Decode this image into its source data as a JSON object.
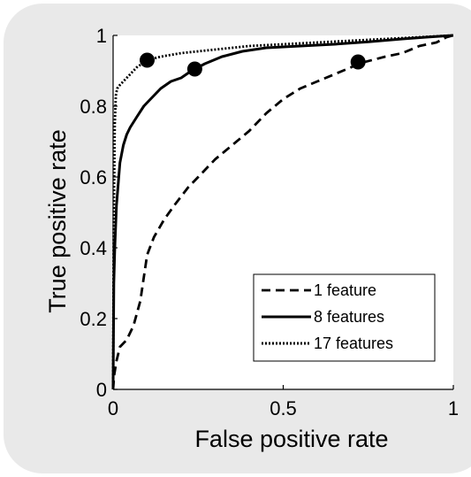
{
  "chart_data": {
    "type": "line",
    "title": "",
    "xlabel": "False positive rate",
    "ylabel": "True positive rate",
    "xlim": [
      0,
      1
    ],
    "ylim": [
      0,
      1
    ],
    "xticks": [
      {
        "value": 0,
        "label": "0"
      },
      {
        "value": 0.5,
        "label": "0.5"
      },
      {
        "value": 1,
        "label": "1"
      }
    ],
    "yticks": [
      {
        "value": 0,
        "label": "0"
      },
      {
        "value": 0.2,
        "label": "0.2"
      },
      {
        "value": 0.4,
        "label": "0.4"
      },
      {
        "value": 0.6,
        "label": "0.6"
      },
      {
        "value": 0.8,
        "label": "0.8"
      },
      {
        "value": 1,
        "label": "1"
      }
    ],
    "grid": false,
    "legend_position": "bottom-right",
    "series": [
      {
        "name": "1 feature",
        "style": "dashed",
        "x": [
          0,
          0.003,
          0.01,
          0.02,
          0.04,
          0.06,
          0.08,
          0.1,
          0.12,
          0.15,
          0.18,
          0.22,
          0.25,
          0.3,
          0.35,
          0.4,
          0.45,
          0.5,
          0.55,
          0.6,
          0.65,
          0.7,
          0.72,
          0.8,
          0.85,
          0.9,
          0.95,
          0.98,
          1.0
        ],
        "y": [
          0,
          0.04,
          0.08,
          0.12,
          0.14,
          0.18,
          0.25,
          0.38,
          0.43,
          0.48,
          0.52,
          0.57,
          0.6,
          0.65,
          0.69,
          0.73,
          0.78,
          0.82,
          0.85,
          0.87,
          0.89,
          0.91,
          0.92,
          0.94,
          0.95,
          0.97,
          0.98,
          0.995,
          1.0
        ]
      },
      {
        "name": "8 features",
        "style": "solid",
        "x": [
          0,
          0.002,
          0.005,
          0.01,
          0.02,
          0.03,
          0.04,
          0.05,
          0.07,
          0.09,
          0.11,
          0.14,
          0.17,
          0.2,
          0.23,
          0.27,
          0.32,
          0.38,
          0.45,
          0.55,
          0.65,
          0.75,
          0.85,
          0.92,
          1.0
        ],
        "y": [
          0,
          0.3,
          0.4,
          0.52,
          0.64,
          0.69,
          0.72,
          0.74,
          0.77,
          0.8,
          0.82,
          0.85,
          0.87,
          0.88,
          0.9,
          0.92,
          0.94,
          0.955,
          0.965,
          0.97,
          0.975,
          0.982,
          0.99,
          0.995,
          1.0
        ]
      },
      {
        "name": "17 features",
        "style": "dotted",
        "x": [
          0,
          0.002,
          0.005,
          0.008,
          0.012,
          0.02,
          0.04,
          0.07,
          0.1,
          0.14,
          0.2,
          0.3,
          0.4,
          0.5,
          0.6,
          0.7,
          0.8,
          0.9,
          1.0
        ],
        "y": [
          0,
          0.5,
          0.75,
          0.83,
          0.85,
          0.86,
          0.88,
          0.91,
          0.93,
          0.94,
          0.95,
          0.96,
          0.97,
          0.975,
          0.98,
          0.985,
          0.99,
          0.995,
          1.0
        ]
      }
    ],
    "markers": [
      {
        "x": 0.1,
        "y": 0.93
      },
      {
        "x": 0.24,
        "y": 0.905
      },
      {
        "x": 0.72,
        "y": 0.925
      }
    ]
  }
}
